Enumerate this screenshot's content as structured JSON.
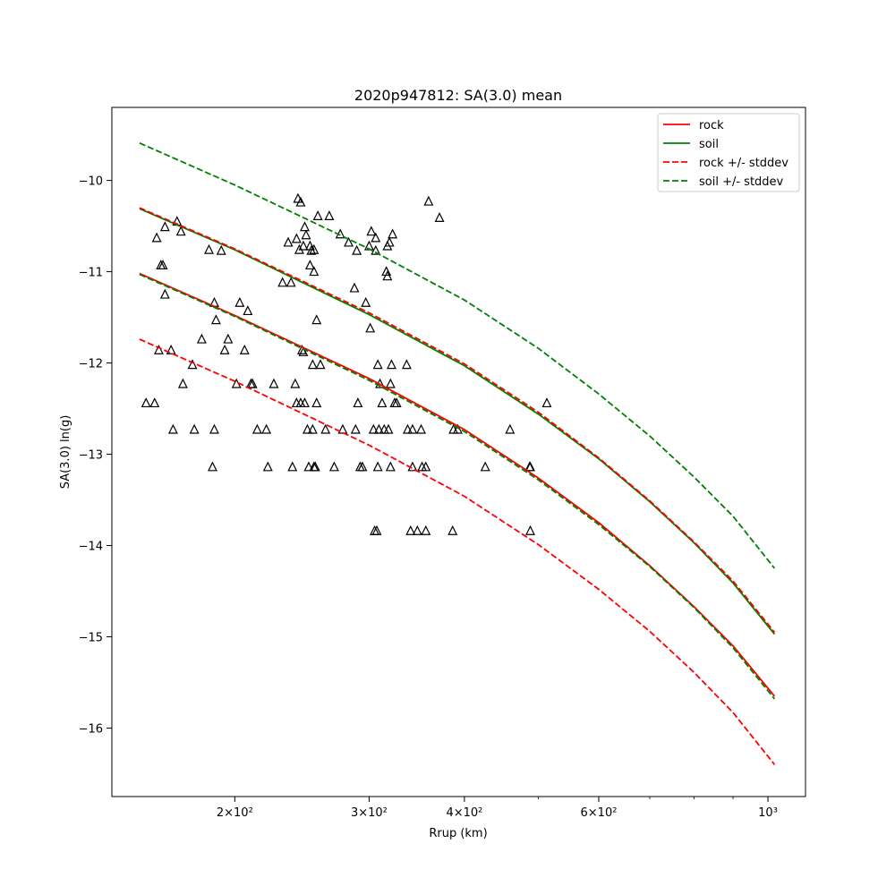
{
  "chart_data": {
    "type": "scatter",
    "title": "2020p947812: SA(3.0) mean",
    "xlabel": "Rrup (km)",
    "ylabel": "SA(3.0) ln(g)",
    "xscale": "log",
    "xlim": [
      138,
      1120
    ],
    "ylim": [
      -16.75,
      -9.2
    ],
    "grid": false,
    "legend_position": "top-right",
    "x_ticks": [
      {
        "value": 200,
        "label": "2×10²"
      },
      {
        "value": 300,
        "label": "3×10²"
      },
      {
        "value": 400,
        "label": "4×10²"
      },
      {
        "value": 600,
        "label": "6×10²"
      },
      {
        "value": 1000,
        "label": "10³"
      }
    ],
    "x_minor_ticks": [
      500,
      700,
      800,
      900
    ],
    "y_ticks": [
      {
        "value": -10,
        "label": "−10"
      },
      {
        "value": -11,
        "label": "−11"
      },
      {
        "value": -12,
        "label": "−12"
      },
      {
        "value": -13,
        "label": "−13"
      },
      {
        "value": -14,
        "label": "−14"
      },
      {
        "value": -15,
        "label": "−15"
      },
      {
        "value": -16,
        "label": "−16"
      }
    ],
    "line_x": [
      150,
      200,
      300,
      400,
      500,
      600,
      700,
      800,
      900,
      1020
    ],
    "series": [
      {
        "name": "rock",
        "color": "#ff0000",
        "dash": "solid",
        "y": [
          -11.02,
          -11.48,
          -12.17,
          -12.73,
          -13.26,
          -13.75,
          -14.22,
          -14.67,
          -15.1,
          -15.65
        ]
      },
      {
        "name": "soil",
        "color": "#008000",
        "dash": "solid",
        "y": [
          -10.31,
          -10.76,
          -11.47,
          -12.03,
          -12.56,
          -13.05,
          -13.52,
          -13.97,
          -14.41,
          -14.97
        ]
      },
      {
        "name": "rock +/- stddev",
        "color": "#ff0000",
        "dash": "dashed",
        "y": [
          -10.3,
          -10.75,
          -11.45,
          -12.01,
          -12.54,
          -13.04,
          -13.51,
          -13.96,
          -14.39,
          -14.95
        ]
      },
      {
        "name": "rock +/- stddev",
        "color": "#ff0000",
        "dash": "dashed",
        "legend": false,
        "y": [
          -11.74,
          -12.2,
          -12.9,
          -13.46,
          -13.99,
          -14.48,
          -14.94,
          -15.39,
          -15.83,
          -16.4
        ]
      },
      {
        "name": "soil +/- stddev",
        "color": "#008000",
        "dash": "dashed",
        "y": [
          -9.59,
          -10.05,
          -10.75,
          -11.31,
          -11.84,
          -12.34,
          -12.8,
          -13.25,
          -13.68,
          -14.25
        ]
      },
      {
        "name": "soil +/- stddev",
        "color": "#008000",
        "dash": "dashed",
        "legend": false,
        "y": [
          -11.03,
          -11.49,
          -12.19,
          -12.75,
          -13.28,
          -13.77,
          -14.23,
          -14.68,
          -15.12,
          -15.68
        ]
      }
    ],
    "observations": {
      "marker": "triangle",
      "color": "#000000",
      "points": [
        [
          153,
          -12.44
        ],
        [
          157,
          -12.44
        ],
        [
          158,
          -10.63
        ],
        [
          159,
          -11.86
        ],
        [
          160,
          -10.93
        ],
        [
          161,
          -10.93
        ],
        [
          162,
          -11.25
        ],
        [
          162,
          -10.51
        ],
        [
          165,
          -11.86
        ],
        [
          166,
          -12.73
        ],
        [
          168,
          -10.45
        ],
        [
          170,
          -10.56
        ],
        [
          171,
          -12.23
        ],
        [
          176,
          -12.02
        ],
        [
          177,
          -12.73
        ],
        [
          181,
          -11.74
        ],
        [
          185,
          -10.76
        ],
        [
          187,
          -13.14
        ],
        [
          188,
          -12.73
        ],
        [
          188,
          -11.34
        ],
        [
          189,
          -11.53
        ],
        [
          192,
          -10.77
        ],
        [
          194,
          -11.86
        ],
        [
          196,
          -11.74
        ],
        [
          201,
          -12.23
        ],
        [
          203,
          -11.34
        ],
        [
          206,
          -11.86
        ],
        [
          208,
          -11.43
        ],
        [
          210,
          -12.23
        ],
        [
          211,
          -12.23
        ],
        [
          214,
          -12.73
        ],
        [
          220,
          -12.73
        ],
        [
          221,
          -13.14
        ],
        [
          225,
          -12.23
        ],
        [
          231,
          -11.12
        ],
        [
          235,
          -10.68
        ],
        [
          237,
          -11.12
        ],
        [
          238,
          -13.14
        ],
        [
          240,
          -12.23
        ],
        [
          241,
          -12.44
        ],
        [
          241,
          -10.64
        ],
        [
          242,
          -10.2
        ],
        [
          243,
          -10.76
        ],
        [
          244,
          -12.44
        ],
        [
          244,
          -10.24
        ],
        [
          245,
          -11.86
        ],
        [
          246,
          -11.88
        ],
        [
          246,
          -10.72
        ],
        [
          247,
          -12.44
        ],
        [
          247,
          -10.51
        ],
        [
          248,
          -10.6
        ],
        [
          249,
          -12.73
        ],
        [
          250,
          -13.14
        ],
        [
          251,
          -10.72
        ],
        [
          251,
          -10.93
        ],
        [
          252,
          -10.77
        ],
        [
          253,
          -12.02
        ],
        [
          253,
          -12.73
        ],
        [
          254,
          -13.14
        ],
        [
          254,
          -11.0
        ],
        [
          254,
          -10.76
        ],
        [
          255,
          -13.14
        ],
        [
          256,
          -11.53
        ],
        [
          256,
          -12.44
        ],
        [
          257,
          -10.39
        ],
        [
          259,
          -12.02
        ],
        [
          263,
          -12.73
        ],
        [
          266,
          -10.39
        ],
        [
          270,
          -13.14
        ],
        [
          275,
          -10.59
        ],
        [
          277,
          -12.73
        ],
        [
          282,
          -10.68
        ],
        [
          287,
          -11.18
        ],
        [
          288,
          -12.73
        ],
        [
          289,
          -10.77
        ],
        [
          290,
          -12.44
        ],
        [
          292,
          -13.14
        ],
        [
          294,
          -13.14
        ],
        [
          297,
          -11.34
        ],
        [
          300,
          -10.72
        ],
        [
          301,
          -11.62
        ],
        [
          302,
          -10.56
        ],
        [
          304,
          -12.73
        ],
        [
          305,
          -13.84
        ],
        [
          306,
          -10.63
        ],
        [
          306,
          -10.77
        ],
        [
          307,
          -13.84
        ],
        [
          308,
          -12.02
        ],
        [
          308,
          -13.14
        ],
        [
          309,
          -12.73
        ],
        [
          310,
          -12.23
        ],
        [
          312,
          -12.44
        ],
        [
          314,
          -12.73
        ],
        [
          316,
          -11.0
        ],
        [
          317,
          -10.72
        ],
        [
          317,
          -11.05
        ],
        [
          318,
          -12.73
        ],
        [
          319,
          -10.68
        ],
        [
          320,
          -12.23
        ],
        [
          320,
          -13.14
        ],
        [
          321,
          -12.02
        ],
        [
          322,
          -10.59
        ],
        [
          324,
          -12.44
        ],
        [
          326,
          -12.44
        ],
        [
          336,
          -12.02
        ],
        [
          337,
          -12.73
        ],
        [
          340,
          -13.84
        ],
        [
          342,
          -12.73
        ],
        [
          342,
          -13.14
        ],
        [
          347,
          -13.84
        ],
        [
          351,
          -12.73
        ],
        [
          352,
          -13.14
        ],
        [
          356,
          -13.14
        ],
        [
          356,
          -13.84
        ],
        [
          359,
          -10.23
        ],
        [
          371,
          -10.41
        ],
        [
          386,
          -13.84
        ],
        [
          387,
          -12.73
        ],
        [
          392,
          -12.73
        ],
        [
          426,
          -13.14
        ],
        [
          459,
          -12.73
        ],
        [
          487,
          -13.14
        ],
        [
          488,
          -13.14
        ],
        [
          488,
          -13.84
        ],
        [
          513,
          -12.44
        ]
      ]
    }
  }
}
